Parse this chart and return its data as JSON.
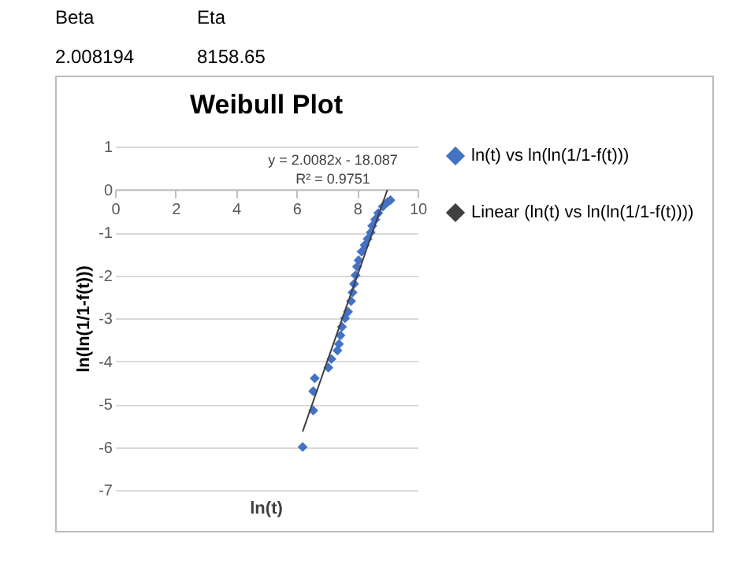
{
  "chart_data": {
    "type": "scatter",
    "title": "Weibull Plot",
    "xlabel": "ln(t)",
    "ylabel": "ln(ln(1/1-f(t)))",
    "annotations": [
      "Beta",
      "Eta",
      "2.008194",
      "8158.65",
      "y = 2.0082x - 18.087",
      "R² = 0.9751"
    ],
    "xlim": [
      0,
      10
    ],
    "xticks": [
      0,
      2,
      4,
      6,
      8,
      10
    ],
    "ylim": [
      -7,
      1
    ],
    "yticks": [
      -7,
      -6,
      -5,
      -4,
      -3,
      -2,
      -1,
      0,
      1
    ],
    "grid": "y",
    "legend": "right",
    "series": [
      {
        "name": "ln(t) vs ln(ln(1/1-f(t)))",
        "marker": "diamond",
        "color": "#4472c4",
        "x": [
          6.2,
          6.55,
          6.55,
          6.6,
          7.05,
          7.15,
          7.35,
          7.4,
          7.45,
          7.5,
          7.6,
          7.7,
          7.8,
          7.85,
          7.9,
          7.95,
          8.0,
          8.05,
          8.15,
          8.25,
          8.35,
          8.45,
          8.5,
          8.6,
          8.7,
          8.85,
          9.0,
          9.1
        ],
        "values": [
          -6.0,
          -5.15,
          -4.7,
          -4.4,
          -4.15,
          -3.95,
          -3.75,
          -3.6,
          -3.4,
          -3.2,
          -3.0,
          -2.85,
          -2.6,
          -2.4,
          -2.2,
          -2.0,
          -1.8,
          -1.65,
          -1.45,
          -1.3,
          -1.15,
          -1.0,
          -0.85,
          -0.7,
          -0.55,
          -0.4,
          -0.3,
          -0.25
        ]
      },
      {
        "name": "Linear (ln(t) vs ln(ln(1/1-f(t))))",
        "type": "line",
        "color": "#404040",
        "x": [
          6.2,
          9.0
        ],
        "values": [
          -5.64,
          -0.01
        ]
      }
    ]
  }
}
